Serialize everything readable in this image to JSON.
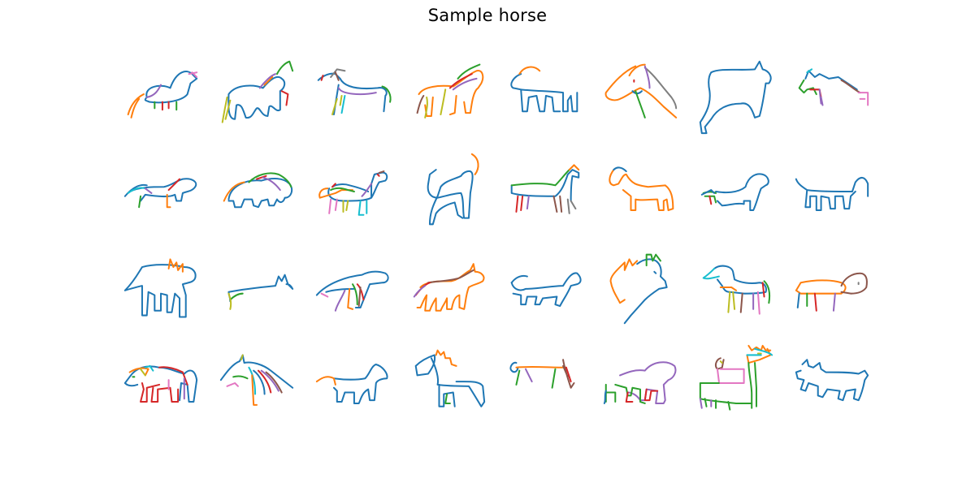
{
  "title": "Sample horse",
  "palette": [
    "#1f77b4",
    "#ff7f0e",
    "#2ca02c",
    "#d62728",
    "#9467bd",
    "#8c564b",
    "#e377c2",
    "#17becf",
    "#bcbd22",
    "#7f7f7f"
  ],
  "grid": {
    "rows": 4,
    "cols": 8
  }
}
